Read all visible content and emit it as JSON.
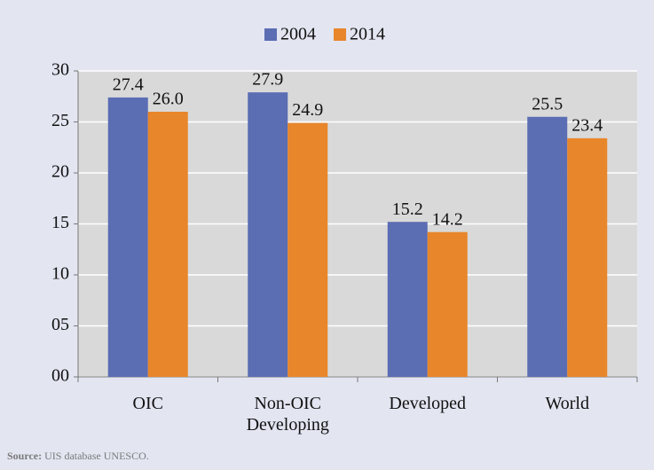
{
  "chart_data": {
    "type": "bar",
    "categories": [
      "OIC",
      "Non-OIC Developing",
      "Developed",
      "World"
    ],
    "series": [
      {
        "name": "2004",
        "color": "#5b6db3",
        "values": [
          27.4,
          27.9,
          15.2,
          25.5
        ],
        "value_labels": [
          "27.4",
          "27.9",
          "15.2",
          "25.5"
        ]
      },
      {
        "name": "2014",
        "color": "#e8862b",
        "values": [
          26.0,
          24.9,
          14.2,
          23.4
        ],
        "value_labels": [
          "26.0",
          "24.9",
          "14.2",
          "23.4"
        ]
      }
    ],
    "ylim": [
      0,
      30
    ],
    "yticks": [
      {
        "value": 0,
        "label": "00"
      },
      {
        "value": 5,
        "label": "05"
      },
      10,
      15,
      20,
      25,
      30
    ],
    "grid": true,
    "legend": "top",
    "source_label": "Source:",
    "source": "UIS database UNESCO."
  }
}
